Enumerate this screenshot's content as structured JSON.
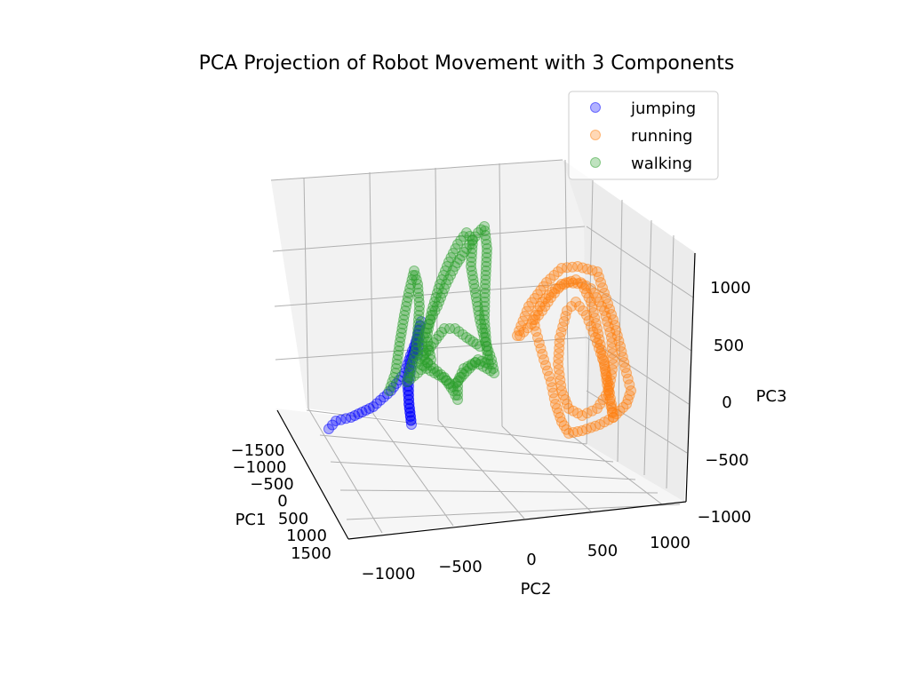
{
  "chart_data": {
    "type": "scatter",
    "projection": "3d",
    "title": "PCA Projection of Robot Movement with 3 Components",
    "xlabel": "PC1",
    "ylabel": "PC2",
    "zlabel": "PC3",
    "x_ticks": [
      "−1500",
      "−1000",
      "−500",
      "0",
      "500",
      "1000",
      "1500"
    ],
    "y_ticks": [
      "−1000",
      "−500",
      "0",
      "500",
      "1000"
    ],
    "z_ticks": [
      "−1000",
      "−500",
      "0",
      "500",
      "1000"
    ],
    "grid": true,
    "legend_position": "top-right",
    "series": [
      {
        "name": "jumping",
        "color": "#0000ff",
        "alpha": 0.3,
        "path_2d_cluster": "left-middle",
        "shape": "curved streak"
      },
      {
        "name": "running",
        "color": "#ff7f0e",
        "alpha": 0.3,
        "path_2d_cluster": "right",
        "shape": "looping tangle"
      },
      {
        "name": "walking",
        "color": "#2ca02c",
        "alpha": 0.3,
        "path_2d_cluster": "left-center",
        "shape": "looping tangle"
      }
    ]
  }
}
